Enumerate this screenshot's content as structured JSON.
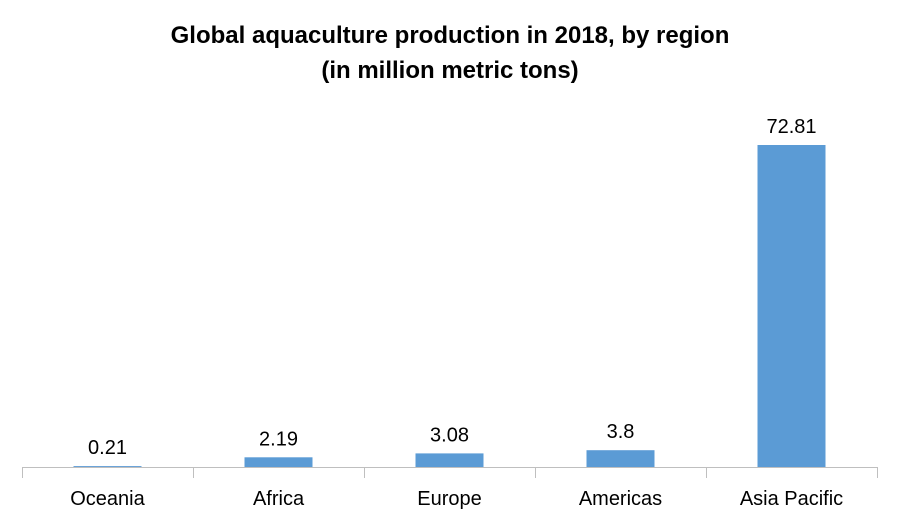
{
  "chart_data": {
    "type": "bar",
    "title": "Global aquaculture production in 2018, by region",
    "subtitle": "(in million metric tons)",
    "categories": [
      "Oceania",
      "Africa",
      "Europe",
      "Americas",
      "Asia Pacific"
    ],
    "values": [
      0.21,
      2.19,
      3.08,
      3.8,
      72.81
    ],
    "value_labels": [
      "0.21",
      "2.19",
      "3.08",
      "3.8",
      "72.81"
    ],
    "xlabel": "",
    "ylabel": "",
    "ylim": [
      0,
      72.81
    ],
    "grid": false,
    "bar_color": "#5B9BD5",
    "axis_color": "#BFBFBF"
  }
}
